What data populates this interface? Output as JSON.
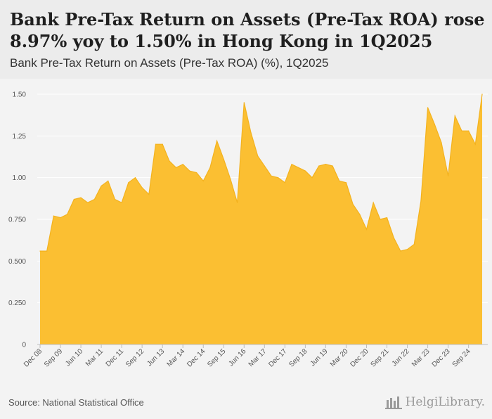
{
  "header": {
    "title": "Bank Pre-Tax Return on Assets (Pre-Tax ROA) rose 8.97% yoy to 1.50% in Hong Kong in 1Q2025",
    "subtitle": "Bank Pre-Tax Return on Assets (Pre-Tax ROA) (%), 1Q2025"
  },
  "footer": {
    "source": "Source: National Statistical Office",
    "logo_text": "HelgiLibrary."
  },
  "colors": {
    "area_fill": "#fbbf32",
    "area_stroke": "#f3b21e",
    "grid": "#ffffff",
    "axis": "#bdbdbd"
  },
  "chart_data": {
    "type": "area",
    "title": "Bank Pre-Tax Return on Assets (Pre-Tax ROA) (%), 1Q2025",
    "xlabel": "",
    "ylabel": "",
    "ylim": [
      0,
      1.5
    ],
    "y_ticks": [
      0,
      0.25,
      0.5,
      0.75,
      1.0,
      1.25,
      1.5
    ],
    "y_tick_labels": [
      "0",
      "0.250",
      "0.500",
      "0.750",
      "1.00",
      "1.25",
      "1.50"
    ],
    "x_tick_labels": [
      {
        "index": 0,
        "label": "Dec 08"
      },
      {
        "index": 3,
        "label": "Sep 09"
      },
      {
        "index": 6,
        "label": "Jun 10"
      },
      {
        "index": 9,
        "label": "Mar 11"
      },
      {
        "index": 12,
        "label": "Dec 11"
      },
      {
        "index": 15,
        "label": "Sep 12"
      },
      {
        "index": 18,
        "label": "Jun 13"
      },
      {
        "index": 21,
        "label": "Mar 14"
      },
      {
        "index": 24,
        "label": "Dec 14"
      },
      {
        "index": 27,
        "label": "Sep 15"
      },
      {
        "index": 30,
        "label": "Jun 16"
      },
      {
        "index": 33,
        "label": "Mar 17"
      },
      {
        "index": 36,
        "label": "Dec 17"
      },
      {
        "index": 39,
        "label": "Sep 18"
      },
      {
        "index": 42,
        "label": "Jun 19"
      },
      {
        "index": 45,
        "label": "Mar 20"
      },
      {
        "index": 48,
        "label": "Dec 20"
      },
      {
        "index": 51,
        "label": "Sep 21"
      },
      {
        "index": 54,
        "label": "Jun 22"
      },
      {
        "index": 57,
        "label": "Mar 23"
      },
      {
        "index": 60,
        "label": "Dec 23"
      },
      {
        "index": 63,
        "label": "Sep 24"
      }
    ],
    "series": [
      {
        "name": "Pre-Tax ROA (%)",
        "values": [
          0.56,
          0.56,
          0.77,
          0.76,
          0.78,
          0.87,
          0.88,
          0.85,
          0.87,
          0.95,
          0.98,
          0.87,
          0.85,
          0.97,
          1.0,
          0.94,
          0.9,
          1.2,
          1.2,
          1.1,
          1.06,
          1.08,
          1.04,
          1.03,
          0.98,
          1.06,
          1.22,
          1.11,
          0.99,
          0.85,
          1.45,
          1.27,
          1.13,
          1.07,
          1.01,
          1.0,
          0.97,
          1.08,
          1.06,
          1.04,
          1.0,
          1.07,
          1.08,
          1.07,
          0.98,
          0.97,
          0.84,
          0.78,
          0.69,
          0.85,
          0.75,
          0.76,
          0.64,
          0.56,
          0.57,
          0.6,
          0.86,
          1.42,
          1.32,
          1.21,
          1.01,
          1.37,
          1.28,
          1.28,
          1.2,
          1.5
        ]
      }
    ]
  }
}
